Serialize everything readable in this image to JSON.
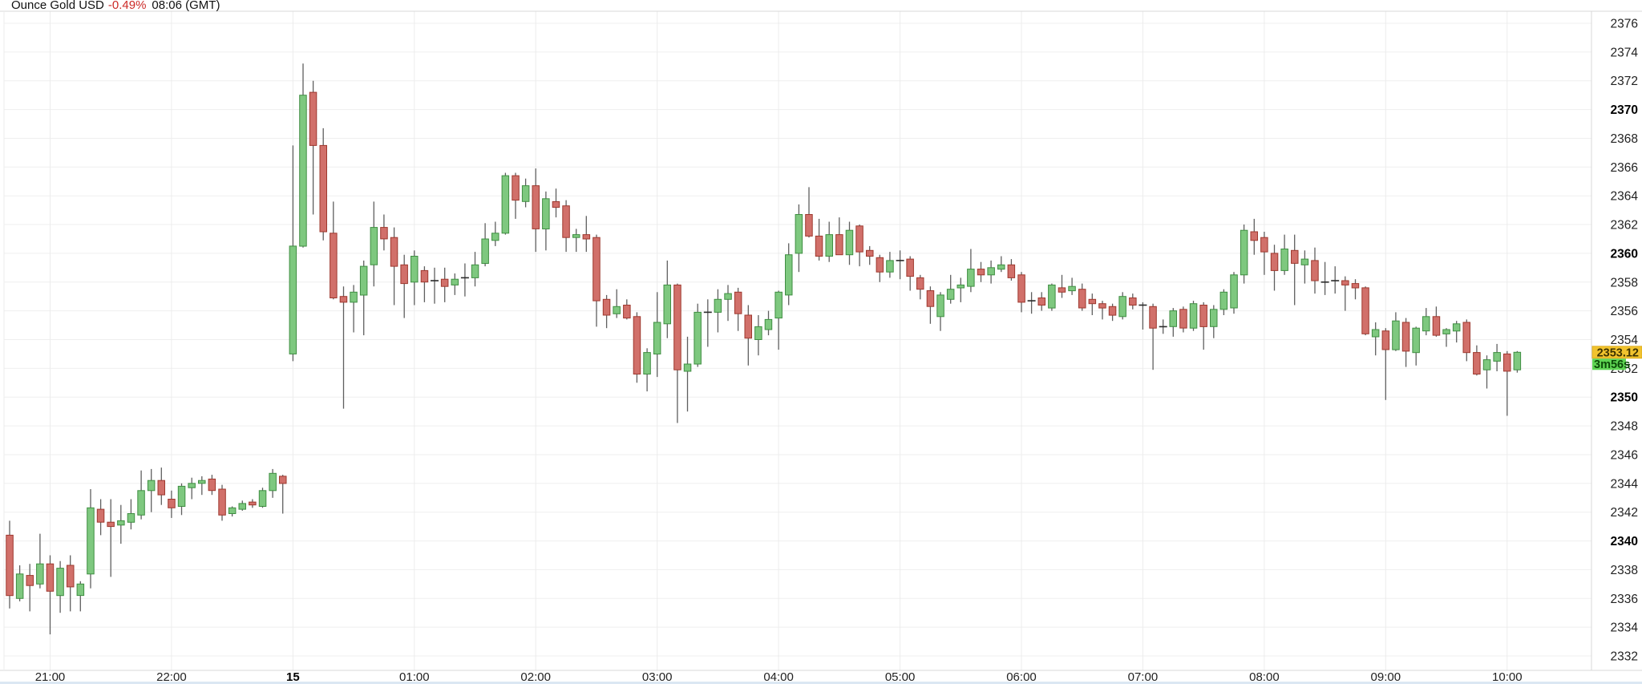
{
  "title": {
    "instrument": "Ounce Gold USD",
    "change_percent": "-0.49%",
    "time": "08:06 (GMT)"
  },
  "current_price": {
    "value": "2353.12",
    "countdown": "3m56s"
  },
  "colors": {
    "background": "#ffffff",
    "up_fill": "#7ec87f",
    "up_stroke": "#3f8e42",
    "down_fill": "#d1706a",
    "down_stroke": "#9e382e",
    "wick": "#5f5f5f",
    "grid_h": "#efefef",
    "grid_v": "#ececec",
    "border": "#d9d9d9",
    "title_text": "#111111",
    "percent_text": "#cc2a27",
    "price_tag_bg": "#f1c32e",
    "price_tag_text": "#3d3200",
    "countdown_bg": "#5ed453",
    "countdown_text": "#0b4a07",
    "bottom_edge": "#dbe7f3"
  },
  "price_axis": {
    "min": 2332,
    "max": 2376,
    "step": 2,
    "bold_every": 10
  },
  "time_axis": {
    "labels": [
      {
        "text": "21:00",
        "index": 4,
        "bold": false
      },
      {
        "text": "22:00",
        "index": 16,
        "bold": false
      },
      {
        "text": "15",
        "index": 28,
        "bold": true
      },
      {
        "text": "01:00",
        "index": 40,
        "bold": false
      },
      {
        "text": "02:00",
        "index": 52,
        "bold": false
      },
      {
        "text": "03:00",
        "index": 64,
        "bold": false
      },
      {
        "text": "04:00",
        "index": 76,
        "bold": false
      },
      {
        "text": "05:00",
        "index": 88,
        "bold": false
      },
      {
        "text": "06:00",
        "index": 100,
        "bold": false
      },
      {
        "text": "07:00",
        "index": 112,
        "bold": false
      },
      {
        "text": "08:00",
        "index": 124,
        "bold": false
      },
      {
        "text": "09:00",
        "index": 136,
        "bold": false
      },
      {
        "text": "10:00",
        "index": 148,
        "bold": false
      }
    ]
  },
  "chart_data": {
    "type": "candlestick",
    "title": "Ounce Gold USD",
    "interval": "5m",
    "ylim": [
      2332,
      2376
    ],
    "note": "Session break: no candles between 22:55 and 00:00 (23:00 hour omitted from axis); '15' marks start of day 15. Last candle forming, 3m56s remaining, last price 2353.12.",
    "columns": [
      "time",
      "open",
      "high",
      "low",
      "close"
    ],
    "candles": [
      [
        "20:40",
        2340.4,
        2341.4,
        2335.3,
        2336.2
      ],
      [
        "20:45",
        2336.0,
        2338.3,
        2335.8,
        2337.7
      ],
      [
        "20:50",
        2337.6,
        2338.4,
        2335.1,
        2336.9
      ],
      [
        "20:55",
        2337.0,
        2340.5,
        2336.7,
        2338.4
      ],
      [
        "21:00",
        2338.4,
        2339.0,
        2333.5,
        2336.5
      ],
      [
        "21:05",
        2336.2,
        2338.6,
        2335.0,
        2338.1
      ],
      [
        "21:10",
        2338.3,
        2339.0,
        2335.1,
        2336.8
      ],
      [
        "21:15",
        2336.2,
        2337.2,
        2335.1,
        2337.0
      ],
      [
        "21:20",
        2337.7,
        2343.6,
        2336.7,
        2342.3
      ],
      [
        "21:25",
        2342.2,
        2342.9,
        2340.4,
        2341.3
      ],
      [
        "21:30",
        2341.3,
        2342.9,
        2337.5,
        2341.0
      ],
      [
        "21:35",
        2341.1,
        2342.5,
        2339.8,
        2341.4
      ],
      [
        "21:40",
        2341.3,
        2342.9,
        2340.8,
        2341.9
      ],
      [
        "21:45",
        2341.8,
        2344.9,
        2341.5,
        2343.5
      ],
      [
        "21:50",
        2343.5,
        2345.0,
        2342.0,
        2344.2
      ],
      [
        "21:55",
        2344.2,
        2345.1,
        2342.5,
        2343.2
      ],
      [
        "22:00",
        2342.9,
        2343.5,
        2341.6,
        2342.3
      ],
      [
        "22:05",
        2342.4,
        2344.0,
        2341.8,
        2343.8
      ],
      [
        "22:10",
        2343.7,
        2344.4,
        2342.9,
        2344.0
      ],
      [
        "22:15",
        2344.0,
        2344.5,
        2343.2,
        2344.2
      ],
      [
        "22:20",
        2344.3,
        2344.6,
        2343.2,
        2343.5
      ],
      [
        "22:25",
        2343.6,
        2343.9,
        2341.4,
        2341.8
      ],
      [
        "22:30",
        2341.9,
        2342.4,
        2341.7,
        2342.3
      ],
      [
        "22:35",
        2342.2,
        2342.8,
        2342.1,
        2342.6
      ],
      [
        "22:40",
        2342.7,
        2342.9,
        2342.3,
        2342.5
      ],
      [
        "22:45",
        2342.4,
        2343.7,
        2342.3,
        2343.5
      ],
      [
        "22:50",
        2343.5,
        2345.0,
        2343.0,
        2344.7
      ],
      [
        "22:55",
        2344.5,
        2344.6,
        2341.9,
        2344.0
      ],
      [
        "00:00",
        2353.0,
        2367.5,
        2352.5,
        2360.5
      ],
      [
        "00:05",
        2360.5,
        2373.2,
        2360.4,
        2371.0
      ],
      [
        "00:10",
        2371.2,
        2372.0,
        2362.7,
        2367.5
      ],
      [
        "00:15",
        2367.5,
        2368.7,
        2360.9,
        2361.5
      ],
      [
        "00:20",
        2361.4,
        2363.6,
        2356.8,
        2356.9
      ],
      [
        "00:25",
        2357.0,
        2357.7,
        2349.2,
        2356.6
      ],
      [
        "00:30",
        2356.6,
        2357.8,
        2354.5,
        2357.3
      ],
      [
        "00:35",
        2357.1,
        2359.5,
        2354.3,
        2359.1
      ],
      [
        "00:40",
        2359.2,
        2363.6,
        2357.7,
        2361.8
      ],
      [
        "00:45",
        2361.8,
        2362.7,
        2360.2,
        2361.0
      ],
      [
        "00:50",
        2361.1,
        2361.8,
        2356.4,
        2359.1
      ],
      [
        "00:55",
        2359.2,
        2359.9,
        2355.5,
        2357.9
      ],
      [
        "01:00",
        2358.0,
        2360.2,
        2356.4,
        2359.8
      ],
      [
        "01:05",
        2358.8,
        2359.1,
        2356.6,
        2358.0
      ],
      [
        "01:10",
        2358.1,
        2359.0,
        2356.5,
        2358.1
      ],
      [
        "01:15",
        2358.2,
        2359.0,
        2356.6,
        2357.7
      ],
      [
        "01:20",
        2357.8,
        2358.6,
        2357.1,
        2358.2
      ],
      [
        "01:25",
        2358.3,
        2359.3,
        2357.0,
        2358.3
      ],
      [
        "01:30",
        2358.3,
        2360.1,
        2357.7,
        2359.2
      ],
      [
        "01:35",
        2359.3,
        2362.1,
        2359.1,
        2361.0
      ],
      [
        "01:40",
        2360.9,
        2362.2,
        2360.5,
        2361.4
      ],
      [
        "01:45",
        2361.4,
        2365.6,
        2361.3,
        2365.4
      ],
      [
        "01:50",
        2365.4,
        2365.6,
        2362.4,
        2363.7
      ],
      [
        "01:55",
        2363.6,
        2365.2,
        2363.2,
        2364.7
      ],
      [
        "02:00",
        2364.7,
        2365.9,
        2360.1,
        2361.7
      ],
      [
        "02:05",
        2361.7,
        2364.3,
        2360.2,
        2363.8
      ],
      [
        "02:10",
        2363.6,
        2364.5,
        2362.5,
        2363.2
      ],
      [
        "02:15",
        2363.3,
        2363.7,
        2360.1,
        2361.1
      ],
      [
        "02:20",
        2361.1,
        2361.7,
        2360.1,
        2361.3
      ],
      [
        "02:25",
        2361.3,
        2362.6,
        2360.1,
        2361.0
      ],
      [
        "02:30",
        2361.1,
        2361.3,
        2354.9,
        2356.7
      ],
      [
        "02:35",
        2356.8,
        2357.1,
        2354.8,
        2355.7
      ],
      [
        "02:40",
        2355.8,
        2357.5,
        2355.5,
        2356.3
      ],
      [
        "02:45",
        2356.4,
        2356.8,
        2355.4,
        2355.5
      ],
      [
        "02:50",
        2355.6,
        2355.9,
        2351.0,
        2351.6
      ],
      [
        "02:55",
        2351.6,
        2353.4,
        2350.4,
        2353.1
      ],
      [
        "03:00",
        2353.0,
        2357.3,
        2351.4,
        2355.2
      ],
      [
        "03:05",
        2355.1,
        2359.5,
        2354.1,
        2357.8
      ],
      [
        "03:10",
        2357.8,
        2357.9,
        2348.2,
        2351.9
      ],
      [
        "03:15",
        2351.8,
        2354.2,
        2349.0,
        2352.3
      ],
      [
        "03:20",
        2352.3,
        2356.5,
        2352.1,
        2355.9
      ],
      [
        "03:25",
        2355.9,
        2356.8,
        2353.5,
        2355.9
      ],
      [
        "03:30",
        2355.9,
        2357.5,
        2354.5,
        2356.8
      ],
      [
        "03:35",
        2356.8,
        2357.8,
        2355.3,
        2357.2
      ],
      [
        "03:40",
        2357.3,
        2357.6,
        2354.6,
        2355.8
      ],
      [
        "03:45",
        2355.7,
        2356.4,
        2352.2,
        2354.1
      ],
      [
        "03:50",
        2354.0,
        2355.7,
        2352.9,
        2354.9
      ],
      [
        "03:55",
        2354.7,
        2356.0,
        2354.3,
        2355.4
      ],
      [
        "04:00",
        2355.5,
        2357.4,
        2353.3,
        2357.3
      ],
      [
        "04:05",
        2357.1,
        2360.7,
        2356.4,
        2359.9
      ],
      [
        "04:10",
        2360.0,
        2363.4,
        2358.7,
        2362.7
      ],
      [
        "04:15",
        2362.7,
        2364.6,
        2361.1,
        2361.2
      ],
      [
        "04:20",
        2361.2,
        2362.4,
        2359.5,
        2359.8
      ],
      [
        "04:25",
        2359.8,
        2362.2,
        2359.4,
        2361.3
      ],
      [
        "04:30",
        2361.3,
        2362.5,
        2359.9,
        2359.9
      ],
      [
        "04:35",
        2359.9,
        2362.2,
        2359.2,
        2361.6
      ],
      [
        "04:40",
        2361.9,
        2362.0,
        2359.1,
        2360.1
      ],
      [
        "04:45",
        2360.2,
        2360.5,
        2359.2,
        2359.8
      ],
      [
        "04:50",
        2359.7,
        2359.9,
        2358.0,
        2358.7
      ],
      [
        "04:55",
        2358.7,
        2360.1,
        2358.3,
        2359.5
      ],
      [
        "05:00",
        2359.5,
        2360.2,
        2358.2,
        2359.5
      ],
      [
        "05:05",
        2359.6,
        2359.8,
        2357.4,
        2358.4
      ],
      [
        "05:10",
        2358.3,
        2358.5,
        2356.8,
        2357.5
      ],
      [
        "05:15",
        2357.4,
        2357.7,
        2355.1,
        2356.3
      ],
      [
        "05:20",
        2355.6,
        2357.3,
        2354.6,
        2357.1
      ],
      [
        "05:25",
        2356.8,
        2358.5,
        2356.5,
        2357.5
      ],
      [
        "05:30",
        2357.6,
        2358.3,
        2356.6,
        2357.8
      ],
      [
        "05:35",
        2357.7,
        2360.3,
        2357.3,
        2358.9
      ],
      [
        "05:40",
        2358.9,
        2359.4,
        2358.0,
        2358.5
      ],
      [
        "05:45",
        2358.5,
        2359.5,
        2357.9,
        2359.0
      ],
      [
        "05:50",
        2358.9,
        2359.8,
        2358.7,
        2359.2
      ],
      [
        "05:55",
        2359.2,
        2359.6,
        2358.1,
        2358.3
      ],
      [
        "06:00",
        2358.5,
        2358.7,
        2355.9,
        2356.6
      ],
      [
        "06:05",
        2356.7,
        2357.3,
        2355.8,
        2356.7
      ],
      [
        "06:10",
        2356.9,
        2357.3,
        2356.0,
        2356.4
      ],
      [
        "06:15",
        2356.2,
        2357.9,
        2356.0,
        2357.8
      ],
      [
        "06:20",
        2357.6,
        2358.5,
        2356.9,
        2357.3
      ],
      [
        "06:25",
        2357.4,
        2358.3,
        2357.1,
        2357.7
      ],
      [
        "06:30",
        2357.5,
        2357.9,
        2356.0,
        2356.2
      ],
      [
        "06:35",
        2356.8,
        2357.2,
        2355.7,
        2356.5
      ],
      [
        "06:40",
        2356.5,
        2356.7,
        2355.4,
        2356.2
      ],
      [
        "06:45",
        2356.3,
        2356.5,
        2355.3,
        2355.7
      ],
      [
        "06:50",
        2355.6,
        2357.3,
        2355.4,
        2357.0
      ],
      [
        "06:55",
        2356.9,
        2357.2,
        2356.1,
        2356.4
      ],
      [
        "07:00",
        2356.4,
        2356.6,
        2354.7,
        2356.4
      ],
      [
        "07:05",
        2356.3,
        2356.5,
        2351.9,
        2354.8
      ],
      [
        "07:10",
        2354.9,
        2355.4,
        2354.4,
        2354.9
      ],
      [
        "07:15",
        2354.9,
        2356.2,
        2354.2,
        2356.0
      ],
      [
        "07:20",
        2356.1,
        2356.3,
        2354.5,
        2354.8
      ],
      [
        "07:25",
        2354.8,
        2356.7,
        2354.6,
        2356.5
      ],
      [
        "07:30",
        2356.4,
        2356.6,
        2353.3,
        2354.9
      ],
      [
        "07:35",
        2354.9,
        2356.4,
        2354.1,
        2356.1
      ],
      [
        "07:40",
        2356.1,
        2357.5,
        2355.7,
        2357.3
      ],
      [
        "07:45",
        2356.2,
        2358.7,
        2355.8,
        2358.5
      ],
      [
        "07:50",
        2358.5,
        2362.0,
        2357.9,
        2361.6
      ],
      [
        "07:55",
        2361.5,
        2362.4,
        2359.9,
        2360.9
      ],
      [
        "08:00",
        2361.1,
        2361.5,
        2358.5,
        2360.1
      ],
      [
        "08:05",
        2360.0,
        2360.6,
        2357.4,
        2358.8
      ],
      [
        "08:10",
        2358.8,
        2361.3,
        2358.5,
        2360.3
      ],
      [
        "08:15",
        2360.2,
        2361.3,
        2356.4,
        2359.3
      ],
      [
        "08:20",
        2359.2,
        2360.2,
        2357.9,
        2359.6
      ],
      [
        "08:25",
        2359.5,
        2360.4,
        2357.2,
        2358.1
      ],
      [
        "08:30",
        2358.0,
        2359.4,
        2357.1,
        2358.0
      ],
      [
        "08:35",
        2358.1,
        2359.1,
        2357.2,
        2358.1
      ],
      [
        "08:40",
        2358.1,
        2358.4,
        2356.0,
        2357.8
      ],
      [
        "08:45",
        2357.9,
        2358.2,
        2356.8,
        2357.6
      ],
      [
        "08:50",
        2357.6,
        2357.7,
        2354.3,
        2354.4
      ],
      [
        "08:55",
        2354.2,
        2355.2,
        2352.9,
        2354.7
      ],
      [
        "09:00",
        2354.6,
        2354.8,
        2349.8,
        2353.3
      ],
      [
        "09:05",
        2353.3,
        2355.9,
        2353.2,
        2355.3
      ],
      [
        "09:10",
        2355.2,
        2355.5,
        2352.1,
        2353.2
      ],
      [
        "09:15",
        2353.1,
        2354.9,
        2352.2,
        2354.8
      ],
      [
        "09:20",
        2354.6,
        2356.2,
        2354.3,
        2355.6
      ],
      [
        "09:25",
        2355.6,
        2356.3,
        2354.2,
        2354.3
      ],
      [
        "09:30",
        2354.4,
        2354.8,
        2353.5,
        2354.7
      ],
      [
        "09:35",
        2354.6,
        2355.3,
        2353.8,
        2355.1
      ],
      [
        "09:40",
        2355.2,
        2355.4,
        2352.5,
        2353.1
      ],
      [
        "09:45",
        2353.1,
        2353.6,
        2351.5,
        2351.6
      ],
      [
        "09:50",
        2351.9,
        2352.9,
        2350.6,
        2352.6
      ],
      [
        "09:55",
        2352.5,
        2353.7,
        2351.8,
        2353.1
      ],
      [
        "10:00",
        2353.0,
        2353.2,
        2348.7,
        2351.8
      ],
      [
        "10:05",
        2351.9,
        2353.2,
        2351.7,
        2353.12
      ]
    ]
  }
}
